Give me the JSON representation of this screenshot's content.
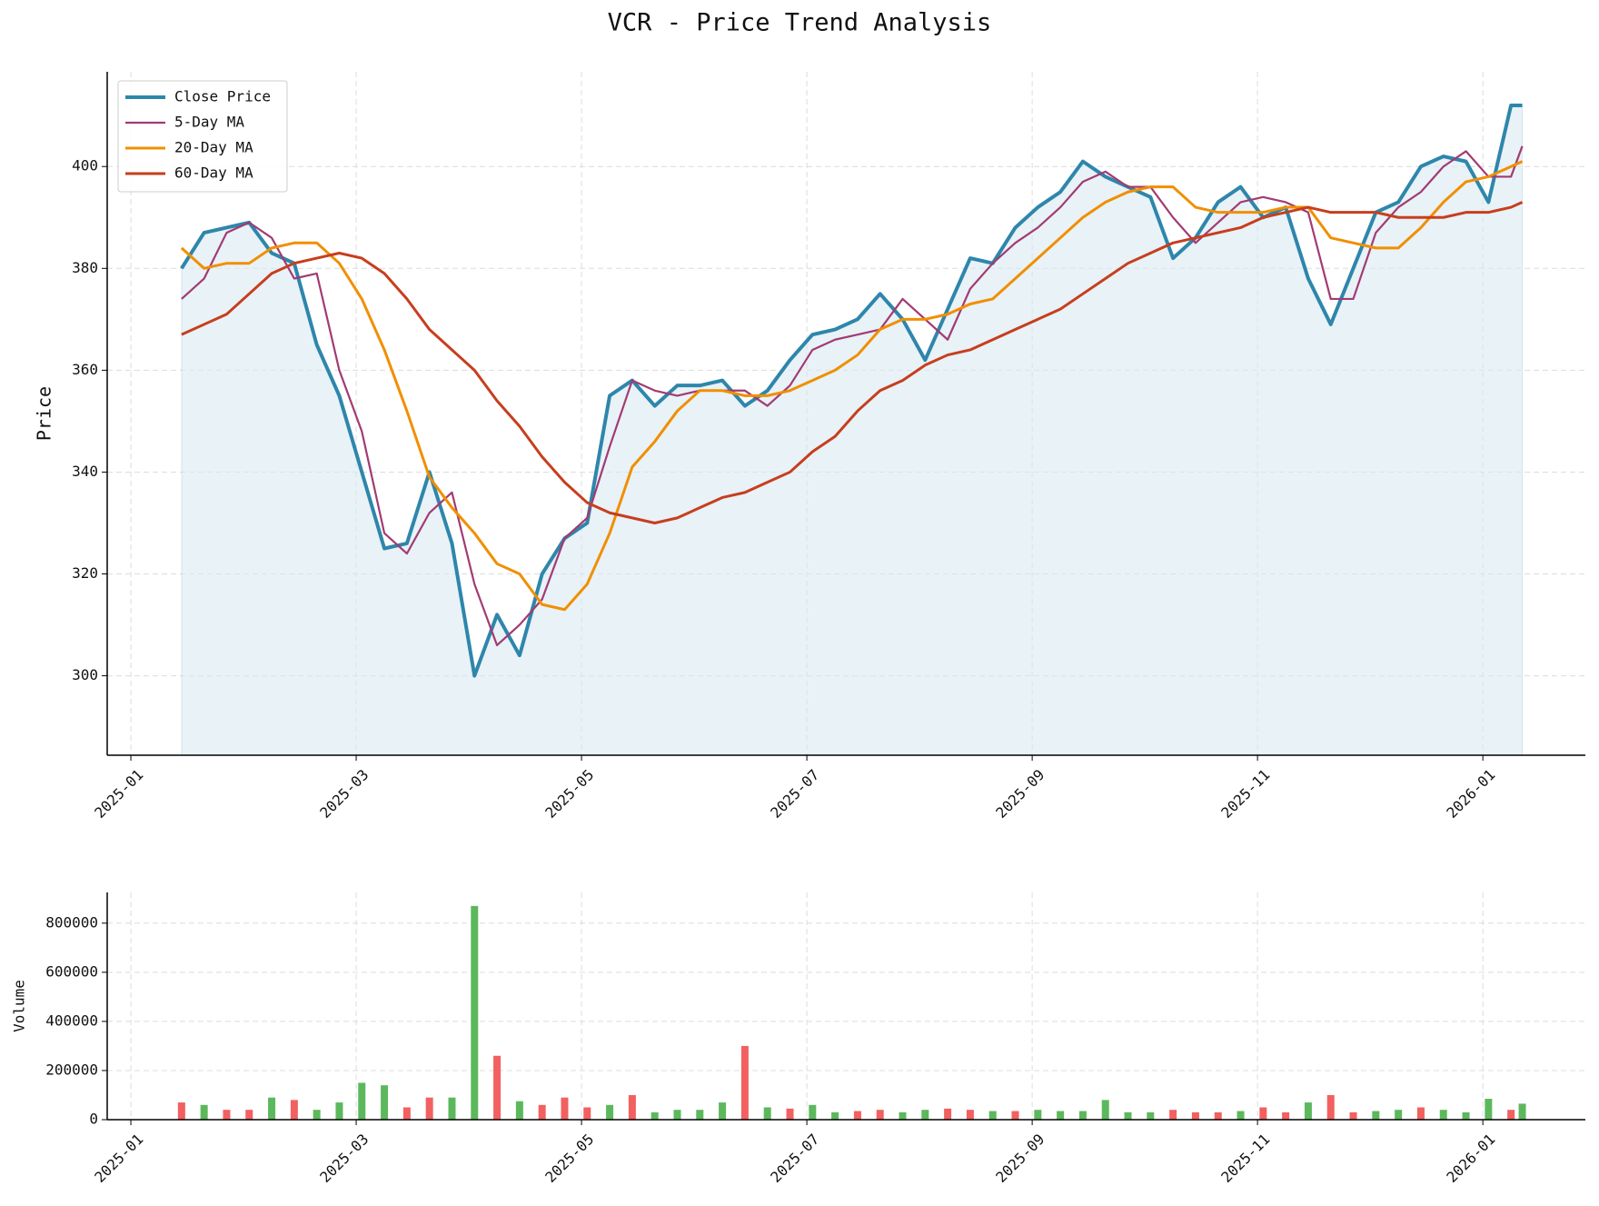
{
  "title": "VCR - Price Trend Analysis",
  "chart_data": [
    {
      "type": "line",
      "ylabel": "Price",
      "fill": true,
      "fill_color": "#d9e9f2",
      "grid": true,
      "legend": "upper left",
      "x": [
        0.45,
        0.65,
        0.85,
        1.05,
        1.25,
        1.45,
        1.65,
        1.85,
        2.05,
        2.25,
        2.45,
        2.65,
        2.85,
        3.05,
        3.25,
        3.45,
        3.65,
        3.85,
        4.05,
        4.25,
        4.45,
        4.65,
        4.85,
        5.05,
        5.25,
        5.45,
        5.65,
        5.85,
        6.05,
        6.25,
        6.45,
        6.65,
        6.85,
        7.05,
        7.25,
        7.45,
        7.65,
        7.85,
        8.05,
        8.25,
        8.45,
        8.65,
        8.85,
        9.05,
        9.25,
        9.45,
        9.65,
        9.85,
        10.05,
        10.25,
        10.45,
        10.65,
        10.85,
        11.05,
        11.25,
        11.45,
        11.65,
        11.85,
        12.05,
        12.25,
        12.35
      ],
      "xlim": [
        -0.21,
        12.91
      ],
      "xticks": [
        {
          "value": 0,
          "label": "2025-01"
        },
        {
          "value": 2,
          "label": "2025-03"
        },
        {
          "value": 4,
          "label": "2025-05"
        },
        {
          "value": 6,
          "label": "2025-07"
        },
        {
          "value": 8,
          "label": "2025-09"
        },
        {
          "value": 10,
          "label": "2025-11"
        },
        {
          "value": 12,
          "label": "2026-01"
        }
      ],
      "ylim": [
        284.4,
        418.6
      ],
      "yticks": [
        300,
        320,
        340,
        360,
        380,
        400
      ],
      "series": [
        {
          "name": "Close Price",
          "color": "#2e86ab",
          "line_width": 4,
          "values": [
            380,
            387,
            388,
            389,
            383,
            381,
            365,
            355,
            340,
            325,
            326,
            340,
            326,
            300,
            312,
            304,
            320,
            327,
            330,
            355,
            358,
            353,
            357,
            357,
            358,
            353,
            356,
            362,
            367,
            368,
            370,
            375,
            370,
            362,
            372,
            382,
            381,
            388,
            392,
            395,
            401,
            398,
            396,
            394,
            382,
            386,
            393,
            396,
            390,
            392,
            378,
            369,
            380,
            391,
            393,
            400,
            402,
            401,
            393,
            412,
            412
          ]
        },
        {
          "name": "5-Day MA",
          "color": "#a23b72",
          "line_width": 2.2,
          "values": [
            374,
            378,
            387,
            389,
            386,
            378,
            379,
            360,
            348,
            328,
            324,
            332,
            336,
            318,
            306,
            310,
            315,
            327,
            331,
            345,
            358,
            356,
            355,
            356,
            356,
            356,
            353,
            357,
            364,
            366,
            367,
            368,
            374,
            370,
            366,
            376,
            381,
            385,
            388,
            392,
            397,
            399,
            396,
            396,
            390,
            385,
            389,
            393,
            394,
            393,
            391,
            374,
            374,
            387,
            392,
            395,
            400,
            403,
            398,
            398,
            404
          ]
        },
        {
          "name": "20-Day MA",
          "color": "#f18f01",
          "line_width": 3,
          "values": [
            384,
            380,
            381,
            381,
            384,
            385,
            385,
            381,
            374,
            364,
            352,
            339,
            333,
            328,
            322,
            320,
            314,
            313,
            318,
            328,
            341,
            346,
            352,
            356,
            356,
            355,
            355,
            356,
            358,
            360,
            363,
            368,
            370,
            370,
            371,
            373,
            374,
            378,
            382,
            386,
            390,
            393,
            395,
            396,
            396,
            392,
            391,
            391,
            391,
            392,
            392,
            386,
            385,
            384,
            384,
            388,
            393,
            397,
            398,
            400,
            401
          ]
        },
        {
          "name": "60-Day MA",
          "color": "#c73e1d",
          "line_width": 3,
          "values": [
            367,
            369,
            371,
            375,
            379,
            381,
            382,
            383,
            382,
            379,
            374,
            368,
            364,
            360,
            354,
            349,
            343,
            338,
            334,
            332,
            331,
            330,
            331,
            333,
            335,
            336,
            338,
            340,
            344,
            347,
            352,
            356,
            358,
            361,
            363,
            364,
            366,
            368,
            370,
            372,
            375,
            378,
            381,
            383,
            385,
            386,
            387,
            388,
            390,
            391,
            392,
            391,
            391,
            391,
            390,
            390,
            390,
            391,
            391,
            392,
            393
          ]
        }
      ]
    },
    {
      "type": "bar",
      "ylabel": "Volume",
      "grid": true,
      "x": [
        0.45,
        0.65,
        0.85,
        1.05,
        1.25,
        1.45,
        1.65,
        1.85,
        2.05,
        2.25,
        2.45,
        2.65,
        2.85,
        3.05,
        3.25,
        3.45,
        3.65,
        3.85,
        4.05,
        4.25,
        4.45,
        4.65,
        4.85,
        5.05,
        5.25,
        5.45,
        5.65,
        5.85,
        6.05,
        6.25,
        6.45,
        6.65,
        6.85,
        7.05,
        7.25,
        7.45,
        7.65,
        7.85,
        8.05,
        8.25,
        8.45,
        8.65,
        8.85,
        9.05,
        9.25,
        9.45,
        9.65,
        9.85,
        10.05,
        10.25,
        10.45,
        10.65,
        10.85,
        11.05,
        11.25,
        11.45,
        11.65,
        11.85,
        12.05,
        12.25,
        12.35
      ],
      "xlim": [
        -0.21,
        12.91
      ],
      "xticks": [
        {
          "value": 0,
          "label": "2025-01"
        },
        {
          "value": 2,
          "label": "2025-03"
        },
        {
          "value": 4,
          "label": "2025-05"
        },
        {
          "value": 6,
          "label": "2025-07"
        },
        {
          "value": 8,
          "label": "2025-09"
        },
        {
          "value": 10,
          "label": "2025-11"
        },
        {
          "value": 12,
          "label": "2026-01"
        }
      ],
      "ylim": [
        0,
        925000
      ],
      "yticks": [
        0,
        200000,
        400000,
        600000,
        800000
      ],
      "values": [
        70000,
        60000,
        40000,
        40000,
        90000,
        80000,
        40000,
        70000,
        150000,
        140000,
        50000,
        90000,
        90000,
        870000,
        260000,
        75000,
        60000,
        90000,
        50000,
        60000,
        100000,
        30000,
        40000,
        40000,
        70000,
        300000,
        50000,
        45000,
        60000,
        30000,
        35000,
        40000,
        30000,
        40000,
        45000,
        40000,
        35000,
        35000,
        40000,
        35000,
        35000,
        80000,
        30000,
        30000,
        40000,
        30000,
        30000,
        35000,
        50000,
        30000,
        70000,
        100000,
        30000,
        35000,
        40000,
        50000,
        40000,
        30000,
        85000,
        40000,
        65000
      ],
      "colors": [
        "#f26060",
        "#5cb85c",
        "#f26060",
        "#f26060",
        "#5cb85c",
        "#f26060",
        "#5cb85c",
        "#5cb85c",
        "#5cb85c",
        "#5cb85c",
        "#f26060",
        "#f26060",
        "#5cb85c",
        "#5cb85c",
        "#f26060",
        "#5cb85c",
        "#f26060",
        "#f26060",
        "#f26060",
        "#5cb85c",
        "#f26060",
        "#5cb85c",
        "#5cb85c",
        "#5cb85c",
        "#5cb85c",
        "#f26060",
        "#5cb85c",
        "#f26060",
        "#5cb85c",
        "#5cb85c",
        "#f26060",
        "#f26060",
        "#5cb85c",
        "#5cb85c",
        "#f26060",
        "#f26060",
        "#5cb85c",
        "#f26060",
        "#5cb85c",
        "#5cb85c",
        "#5cb85c",
        "#5cb85c",
        "#5cb85c",
        "#5cb85c",
        "#f26060",
        "#f26060",
        "#f26060",
        "#5cb85c",
        "#f26060",
        "#f26060",
        "#5cb85c",
        "#f26060",
        "#f26060",
        "#5cb85c",
        "#5cb85c",
        "#f26060",
        "#5cb85c",
        "#5cb85c",
        "#5cb85c",
        "#f26060",
        "#5cb85c"
      ]
    }
  ]
}
